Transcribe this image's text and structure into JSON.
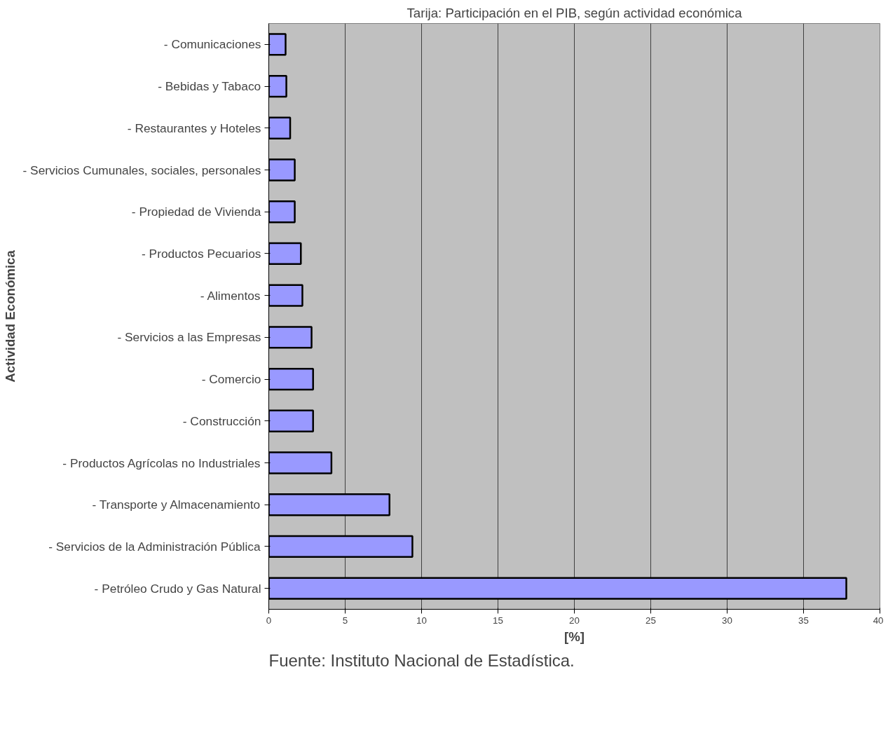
{
  "chart_data": {
    "type": "bar",
    "orientation": "horizontal",
    "title": "Tarija: Participación en el PIB, según actividad económica",
    "categories": [
      "- Comunicaciones",
      "- Bebidas y Tabaco",
      "- Restaurantes y Hoteles",
      "- Servicios Cumunales, sociales, personales",
      "- Propiedad de Vivienda",
      "- Productos Pecuarios",
      "- Alimentos",
      "- Servicios a las Empresas",
      "- Comercio",
      "- Construcción",
      "- Productos Agrícolas no Industriales",
      "- Transporte y Almacenamiento",
      "- Servicios de la Administración Pública",
      "- Petróleo Crudo y Gas Natural"
    ],
    "values": [
      1.1,
      1.15,
      1.4,
      1.7,
      1.7,
      2.1,
      2.2,
      2.8,
      2.9,
      2.9,
      4.1,
      7.9,
      9.4,
      37.8
    ],
    "color": "#9999ff",
    "xlim": [
      0,
      40
    ],
    "xticks": [
      0,
      5,
      10,
      15,
      20,
      25,
      30,
      35,
      40
    ],
    "xlabel": "[%]",
    "ylabel": "Actividad Económica",
    "grid": "x",
    "annotations": [
      "Fuente: Instituto Nacional de Estadística."
    ]
  }
}
